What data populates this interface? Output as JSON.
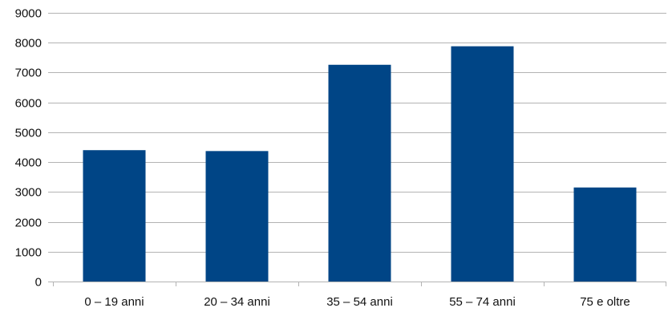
{
  "chart_data": {
    "type": "bar",
    "categories": [
      "0 – 19 anni",
      "20 – 34 anni",
      "35 – 54 anni",
      "55 – 74 anni",
      "75 e oltre"
    ],
    "values": [
      4400,
      4370,
      7260,
      7880,
      3150
    ],
    "ylim": [
      0,
      9000
    ],
    "yticks": [
      0,
      1000,
      2000,
      3000,
      4000,
      5000,
      6000,
      7000,
      8000,
      9000
    ],
    "title": "",
    "xlabel": "",
    "ylabel": "",
    "grid": true,
    "legend": "none",
    "bar_color": "#004586"
  }
}
